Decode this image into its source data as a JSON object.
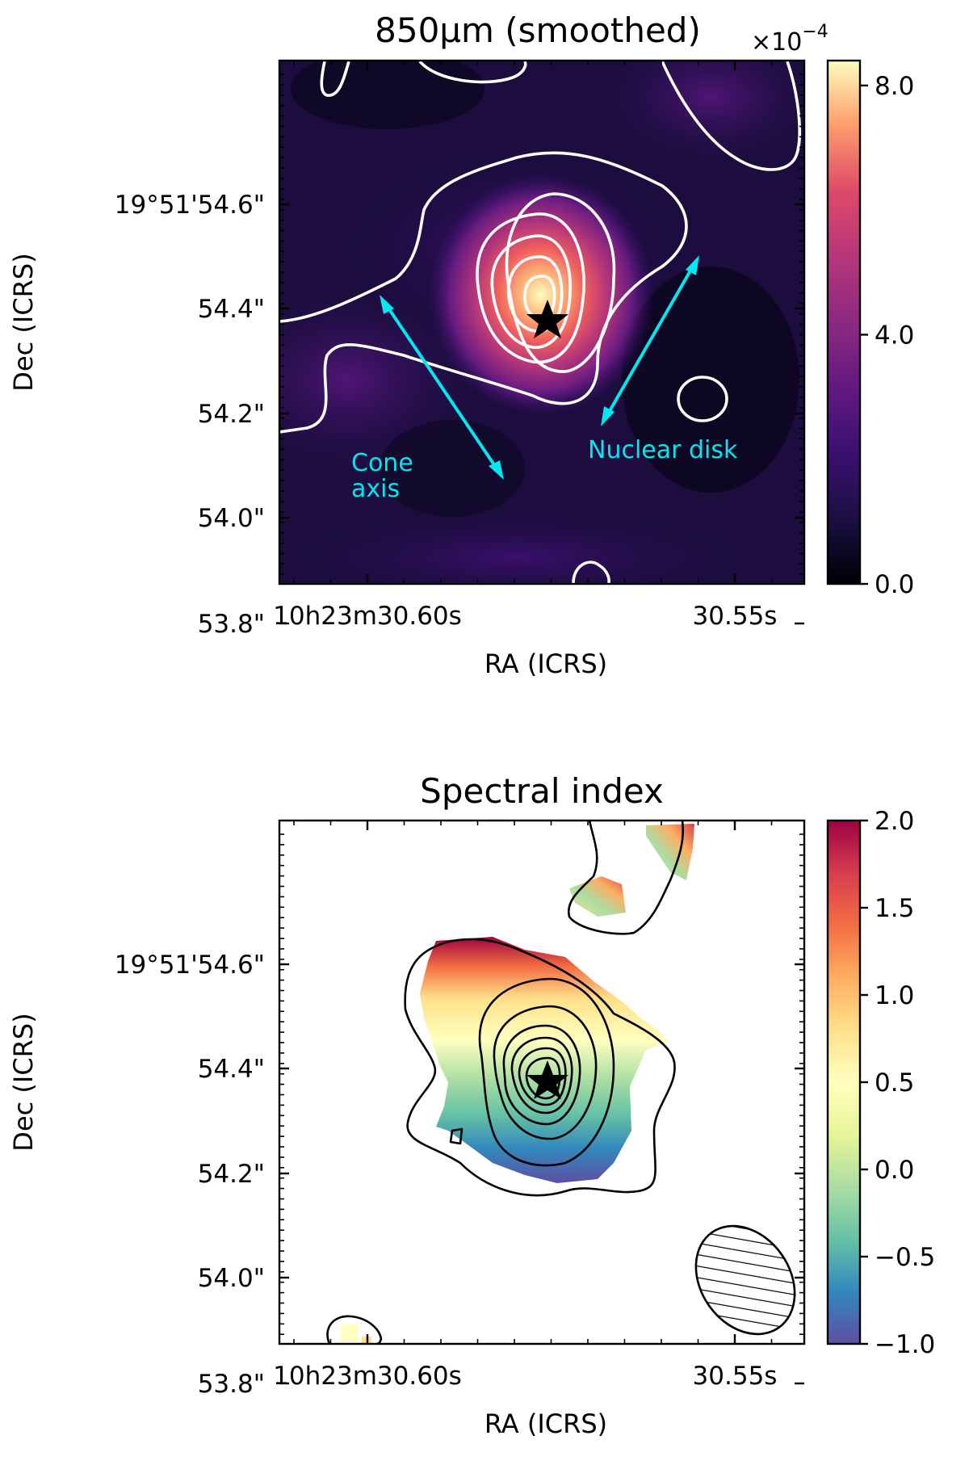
{
  "chart_data": [
    {
      "type": "heatmap",
      "title": "850μm (smoothed)",
      "colormap": "magma",
      "xlabel": "RA (ICRS)",
      "ylabel": "Dec (ICRS)",
      "x_tick_labels": [
        "10h23m30.60s",
        "30.55s"
      ],
      "y_tick_labels": [
        "19°51'54.6\"",
        "54.4\"",
        "54.2\"",
        "54.0\"",
        "53.8\""
      ],
      "colorbar": {
        "range": [
          0.0,
          8.4
        ],
        "ticks": [
          0.0,
          4.0,
          8.0
        ],
        "tick_labels": [
          "0.0",
          "4.0",
          "8.0"
        ],
        "multiplier_base": "×10",
        "multiplier_exp": "−4",
        "multiplier": "1e-4"
      },
      "peak_marker": "star",
      "annotations": [
        {
          "lines": [
            "Cone",
            "axis"
          ],
          "color": "#00e8f0"
        },
        {
          "lines": [
            "Nuclear disk"
          ],
          "color": "#00e8f0"
        }
      ],
      "contour_color": "#ffffff"
    },
    {
      "type": "heatmap",
      "title": "Spectral index",
      "colormap": "Spectral_r",
      "xlabel": "RA (ICRS)",
      "ylabel": "Dec (ICRS)",
      "x_tick_labels": [
        "10h23m30.60s",
        "30.55s"
      ],
      "y_tick_labels": [
        "19°51'54.6\"",
        "54.4\"",
        "54.2\"",
        "54.0\"",
        "53.8\""
      ],
      "colorbar": {
        "range": [
          -1.0,
          2.0
        ],
        "ticks": [
          2.0,
          1.5,
          1.0,
          0.5,
          0.0,
          -0.5,
          -1.0
        ],
        "tick_labels": [
          "2.0",
          "1.5",
          "1.0",
          "0.5",
          "0.0",
          "−0.5",
          "−1.0"
        ]
      },
      "peak_marker": "star",
      "beam": "hatched ellipse",
      "contour_color": "#000000"
    }
  ]
}
